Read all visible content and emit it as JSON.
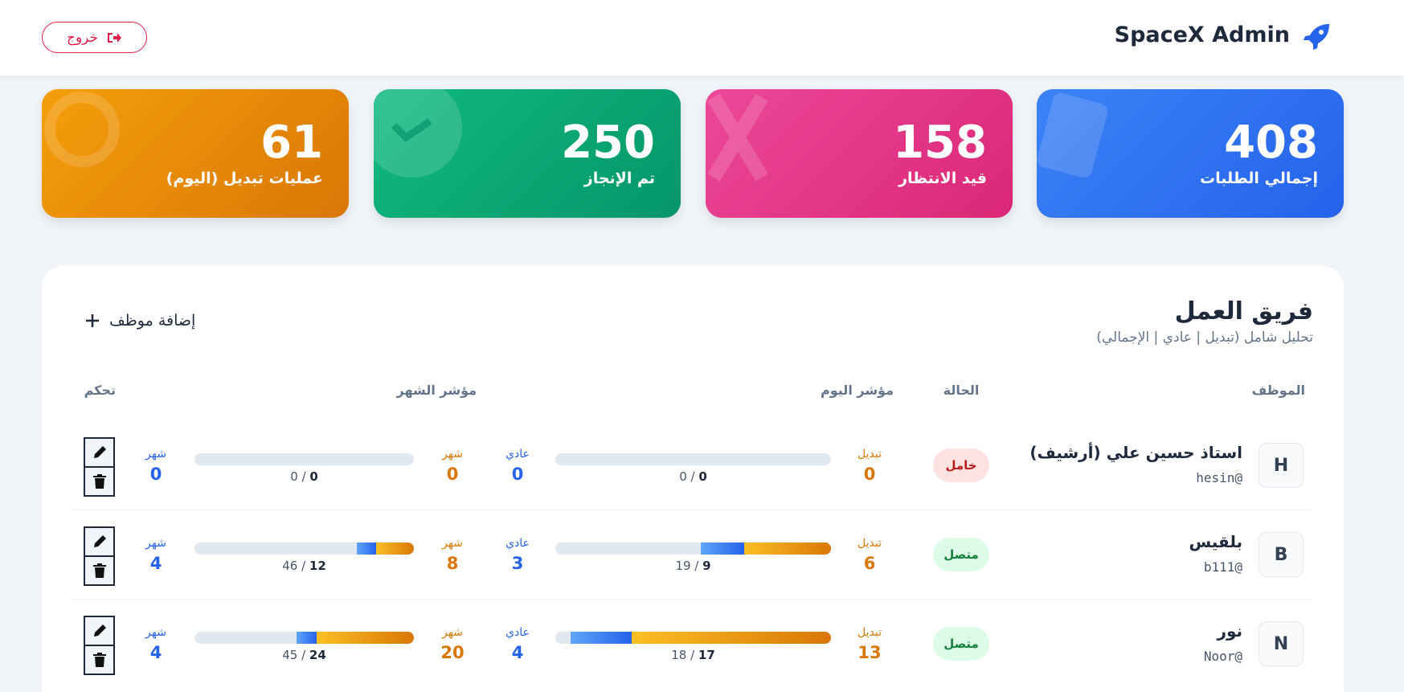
{
  "header": {
    "brand": "SpaceX Admin",
    "logout": "خروج"
  },
  "stats": [
    {
      "value": 408,
      "label": "إجمالي الطلبات"
    },
    {
      "value": 158,
      "label": "قيد الانتظار"
    },
    {
      "value": 250,
      "label": "تم الإنجاز"
    },
    {
      "value": 61,
      "label": "عمليات تبديل (اليوم)"
    }
  ],
  "team": {
    "title": "فريق العمل",
    "subtitle": "تحليل شامل (تبديل | عادي | الإجمالي)",
    "add": "إضافة موظف"
  },
  "table": {
    "columns": [
      "الموظف",
      "الحالة",
      "مؤشر اليوم",
      "مؤشر الشهر",
      "تحكم"
    ],
    "rows": [
      {
        "avatar": "H",
        "name": "استاذ حسين علي (أرشيف)",
        "user": "hesin@",
        "status": "خامل",
        "online": false,
        "today": {
          "swap_label": "تبديل",
          "swap": 0,
          "regular_label": "عادي",
          "regular": 0,
          "done": 0,
          "total": 0
        },
        "month": {
          "swap_label": "شهر",
          "swap": 0,
          "regular_label": "شهر",
          "regular": 0,
          "done": 0,
          "total": 0
        }
      },
      {
        "avatar": "B",
        "name": "بلقيس",
        "user": "b111@",
        "status": "متصل",
        "online": true,
        "today": {
          "swap_label": "تبديل",
          "swap": 6,
          "regular_label": "عادي",
          "regular": 3,
          "done": 9,
          "total": 19
        },
        "month": {
          "swap_label": "شهر",
          "swap": 8,
          "regular_label": "شهر",
          "regular": 4,
          "done": 12,
          "total": 46
        }
      },
      {
        "avatar": "N",
        "name": "نور",
        "user": "Noor@",
        "status": "متصل",
        "online": true,
        "today": {
          "swap_label": "تبديل",
          "swap": 13,
          "regular_label": "عادي",
          "regular": 4,
          "done": 17,
          "total": 18
        },
        "month": {
          "swap_label": "شهر",
          "swap": 20,
          "regular_label": "شهر",
          "regular": 4,
          "done": 24,
          "total": 45
        }
      }
    ]
  }
}
